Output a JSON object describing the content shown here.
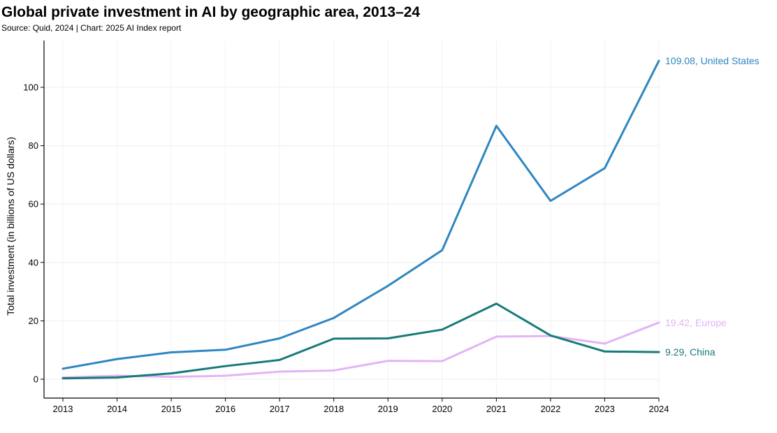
{
  "header": {
    "title": "Global private investment in AI by geographic area, 2013–24",
    "subtitle": "Source: Quid, 2024 | Chart: 2025 AI Index report"
  },
  "chart_data": {
    "type": "line",
    "title": "Global private investment in AI by geographic area, 2013–24",
    "xlabel": "",
    "ylabel": "Total investment (in billions of US dollars)",
    "x": [
      2013,
      2014,
      2015,
      2016,
      2017,
      2018,
      2019,
      2020,
      2021,
      2022,
      2023,
      2024
    ],
    "xlim": [
      2013,
      2024
    ],
    "ylim": [
      -6,
      115
    ],
    "yticks": [
      0,
      20,
      40,
      60,
      80,
      100
    ],
    "grid": true,
    "series": [
      {
        "name": "United States",
        "color": "#2e86c1",
        "values": [
          3.6,
          6.9,
          9.2,
          10.1,
          14.0,
          21.0,
          32.0,
          44.2,
          86.8,
          61.1,
          72.3,
          109.08
        ],
        "end_label": "109.08, United States"
      },
      {
        "name": "China",
        "color": "#177a7a",
        "values": [
          0.3,
          0.6,
          2.0,
          4.5,
          6.6,
          13.9,
          14.0,
          17.0,
          25.9,
          15.0,
          9.5,
          9.29
        ],
        "end_label": "9.29, China"
      },
      {
        "name": "Europe",
        "color": "#e3b4f5",
        "values": [
          0.6,
          1.2,
          0.8,
          1.2,
          2.6,
          3.0,
          6.3,
          6.2,
          14.6,
          14.8,
          12.2,
          19.42
        ],
        "end_label": "19.42, Europe"
      }
    ]
  }
}
